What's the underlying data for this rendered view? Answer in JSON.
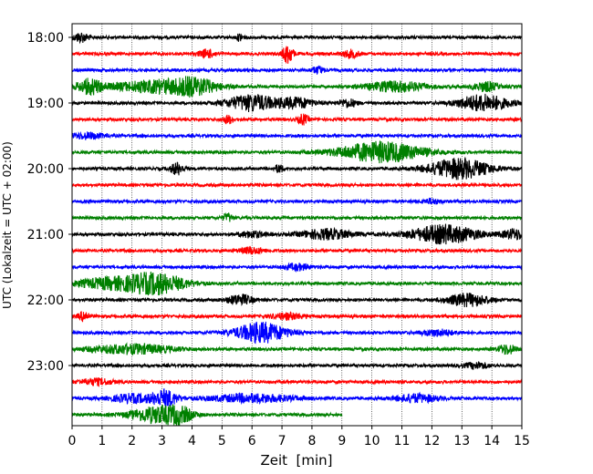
{
  "chart_data": {
    "type": "line",
    "title": "",
    "xlabel": "Zeit  [min]",
    "ylabel": "UTC (Lokalzeit = UTC + 02:00)",
    "xlim": [
      0,
      15
    ],
    "x_ticks": [
      "0",
      "1",
      "2",
      "3",
      "4",
      "5",
      "6",
      "7",
      "8",
      "9",
      "10",
      "11",
      "12",
      "13",
      "14",
      "15"
    ],
    "y_tick_labels": [
      "18:00",
      "19:00",
      "20:00",
      "21:00",
      "22:00",
      "23:00"
    ],
    "x_grid": true,
    "trace_colors": [
      "#000000",
      "#ff0000",
      "#0000ff",
      "#008000"
    ],
    "traces": [
      {
        "start": "18:00",
        "events": [
          [
            0.3,
            0.45,
            0.18
          ],
          [
            5.6,
            0.35,
            0.08
          ]
        ]
      },
      {
        "start": "18:15",
        "events": [
          [
            4.5,
            0.4,
            0.2
          ],
          [
            7.2,
            1.0,
            0.12
          ],
          [
            9.3,
            0.35,
            0.2
          ]
        ]
      },
      {
        "start": "18:30",
        "events": [
          [
            8.2,
            0.35,
            0.15
          ]
        ]
      },
      {
        "start": "18:45",
        "events": [
          [
            0.6,
            0.7,
            0.3
          ],
          [
            2.9,
            0.6,
            1.1
          ],
          [
            4.1,
            0.6,
            0.5
          ],
          [
            10.8,
            0.5,
            0.7
          ],
          [
            13.8,
            0.45,
            0.3
          ]
        ]
      },
      {
        "start": "19:00",
        "events": [
          [
            6.0,
            0.8,
            0.6
          ],
          [
            7.5,
            0.5,
            0.4
          ],
          [
            9.2,
            0.4,
            0.2
          ],
          [
            13.7,
            0.8,
            0.6
          ]
        ]
      },
      {
        "start": "19:15",
        "events": [
          [
            5.2,
            0.4,
            0.12
          ],
          [
            7.7,
            0.5,
            0.12
          ]
        ]
      },
      {
        "start": "19:30",
        "events": [
          [
            0.5,
            0.3,
            0.4
          ]
        ]
      },
      {
        "start": "19:45",
        "events": [
          [
            10.3,
            1.0,
            1.0
          ]
        ]
      },
      {
        "start": "20:00",
        "events": [
          [
            3.5,
            0.6,
            0.15
          ],
          [
            6.9,
            0.4,
            0.1
          ],
          [
            12.9,
            1.0,
            0.7
          ]
        ]
      },
      {
        "start": "20:15",
        "events": []
      },
      {
        "start": "20:30",
        "events": [
          [
            12.0,
            0.25,
            0.2
          ]
        ]
      },
      {
        "start": "20:45",
        "events": [
          [
            5.2,
            0.4,
            0.12
          ]
        ]
      },
      {
        "start": "21:00",
        "events": [
          [
            6.0,
            0.3,
            0.3
          ],
          [
            8.5,
            0.5,
            0.6
          ],
          [
            12.4,
            0.9,
            0.8
          ],
          [
            14.8,
            0.5,
            0.3
          ]
        ]
      },
      {
        "start": "21:15",
        "events": [
          [
            6.0,
            0.3,
            0.3
          ]
        ]
      },
      {
        "start": "21:30",
        "events": [
          [
            7.5,
            0.3,
            0.3
          ]
        ]
      },
      {
        "start": "21:45",
        "events": [
          [
            1.2,
            0.5,
            0.8
          ],
          [
            2.8,
            1.0,
            0.7
          ]
        ]
      },
      {
        "start": "22:00",
        "events": [
          [
            5.6,
            0.5,
            0.3
          ],
          [
            13.2,
            0.6,
            0.5
          ]
        ]
      },
      {
        "start": "22:15",
        "events": [
          [
            0.4,
            0.5,
            0.12
          ],
          [
            7.2,
            0.3,
            0.4
          ]
        ]
      },
      {
        "start": "22:30",
        "events": [
          [
            6.3,
            1.0,
            0.6
          ],
          [
            12.2,
            0.3,
            0.4
          ]
        ]
      },
      {
        "start": "22:45",
        "events": [
          [
            2.0,
            0.45,
            1.0
          ],
          [
            14.5,
            0.5,
            0.2
          ]
        ]
      },
      {
        "start": "23:00",
        "events": [
          [
            13.5,
            0.3,
            0.3
          ]
        ]
      },
      {
        "start": "23:15",
        "events": [
          [
            0.8,
            0.3,
            0.4
          ]
        ]
      },
      {
        "start": "23:30",
        "events": [
          [
            2.0,
            0.4,
            0.5
          ],
          [
            3.1,
            0.8,
            0.3
          ],
          [
            6.0,
            0.4,
            1.0
          ],
          [
            11.5,
            0.4,
            0.5
          ]
        ]
      },
      {
        "start": "23:45",
        "events": [
          [
            2.8,
            0.8,
            0.6
          ],
          [
            3.6,
            0.6,
            0.3
          ]
        ]
      }
    ],
    "last_trace_end_min": 9.0
  }
}
